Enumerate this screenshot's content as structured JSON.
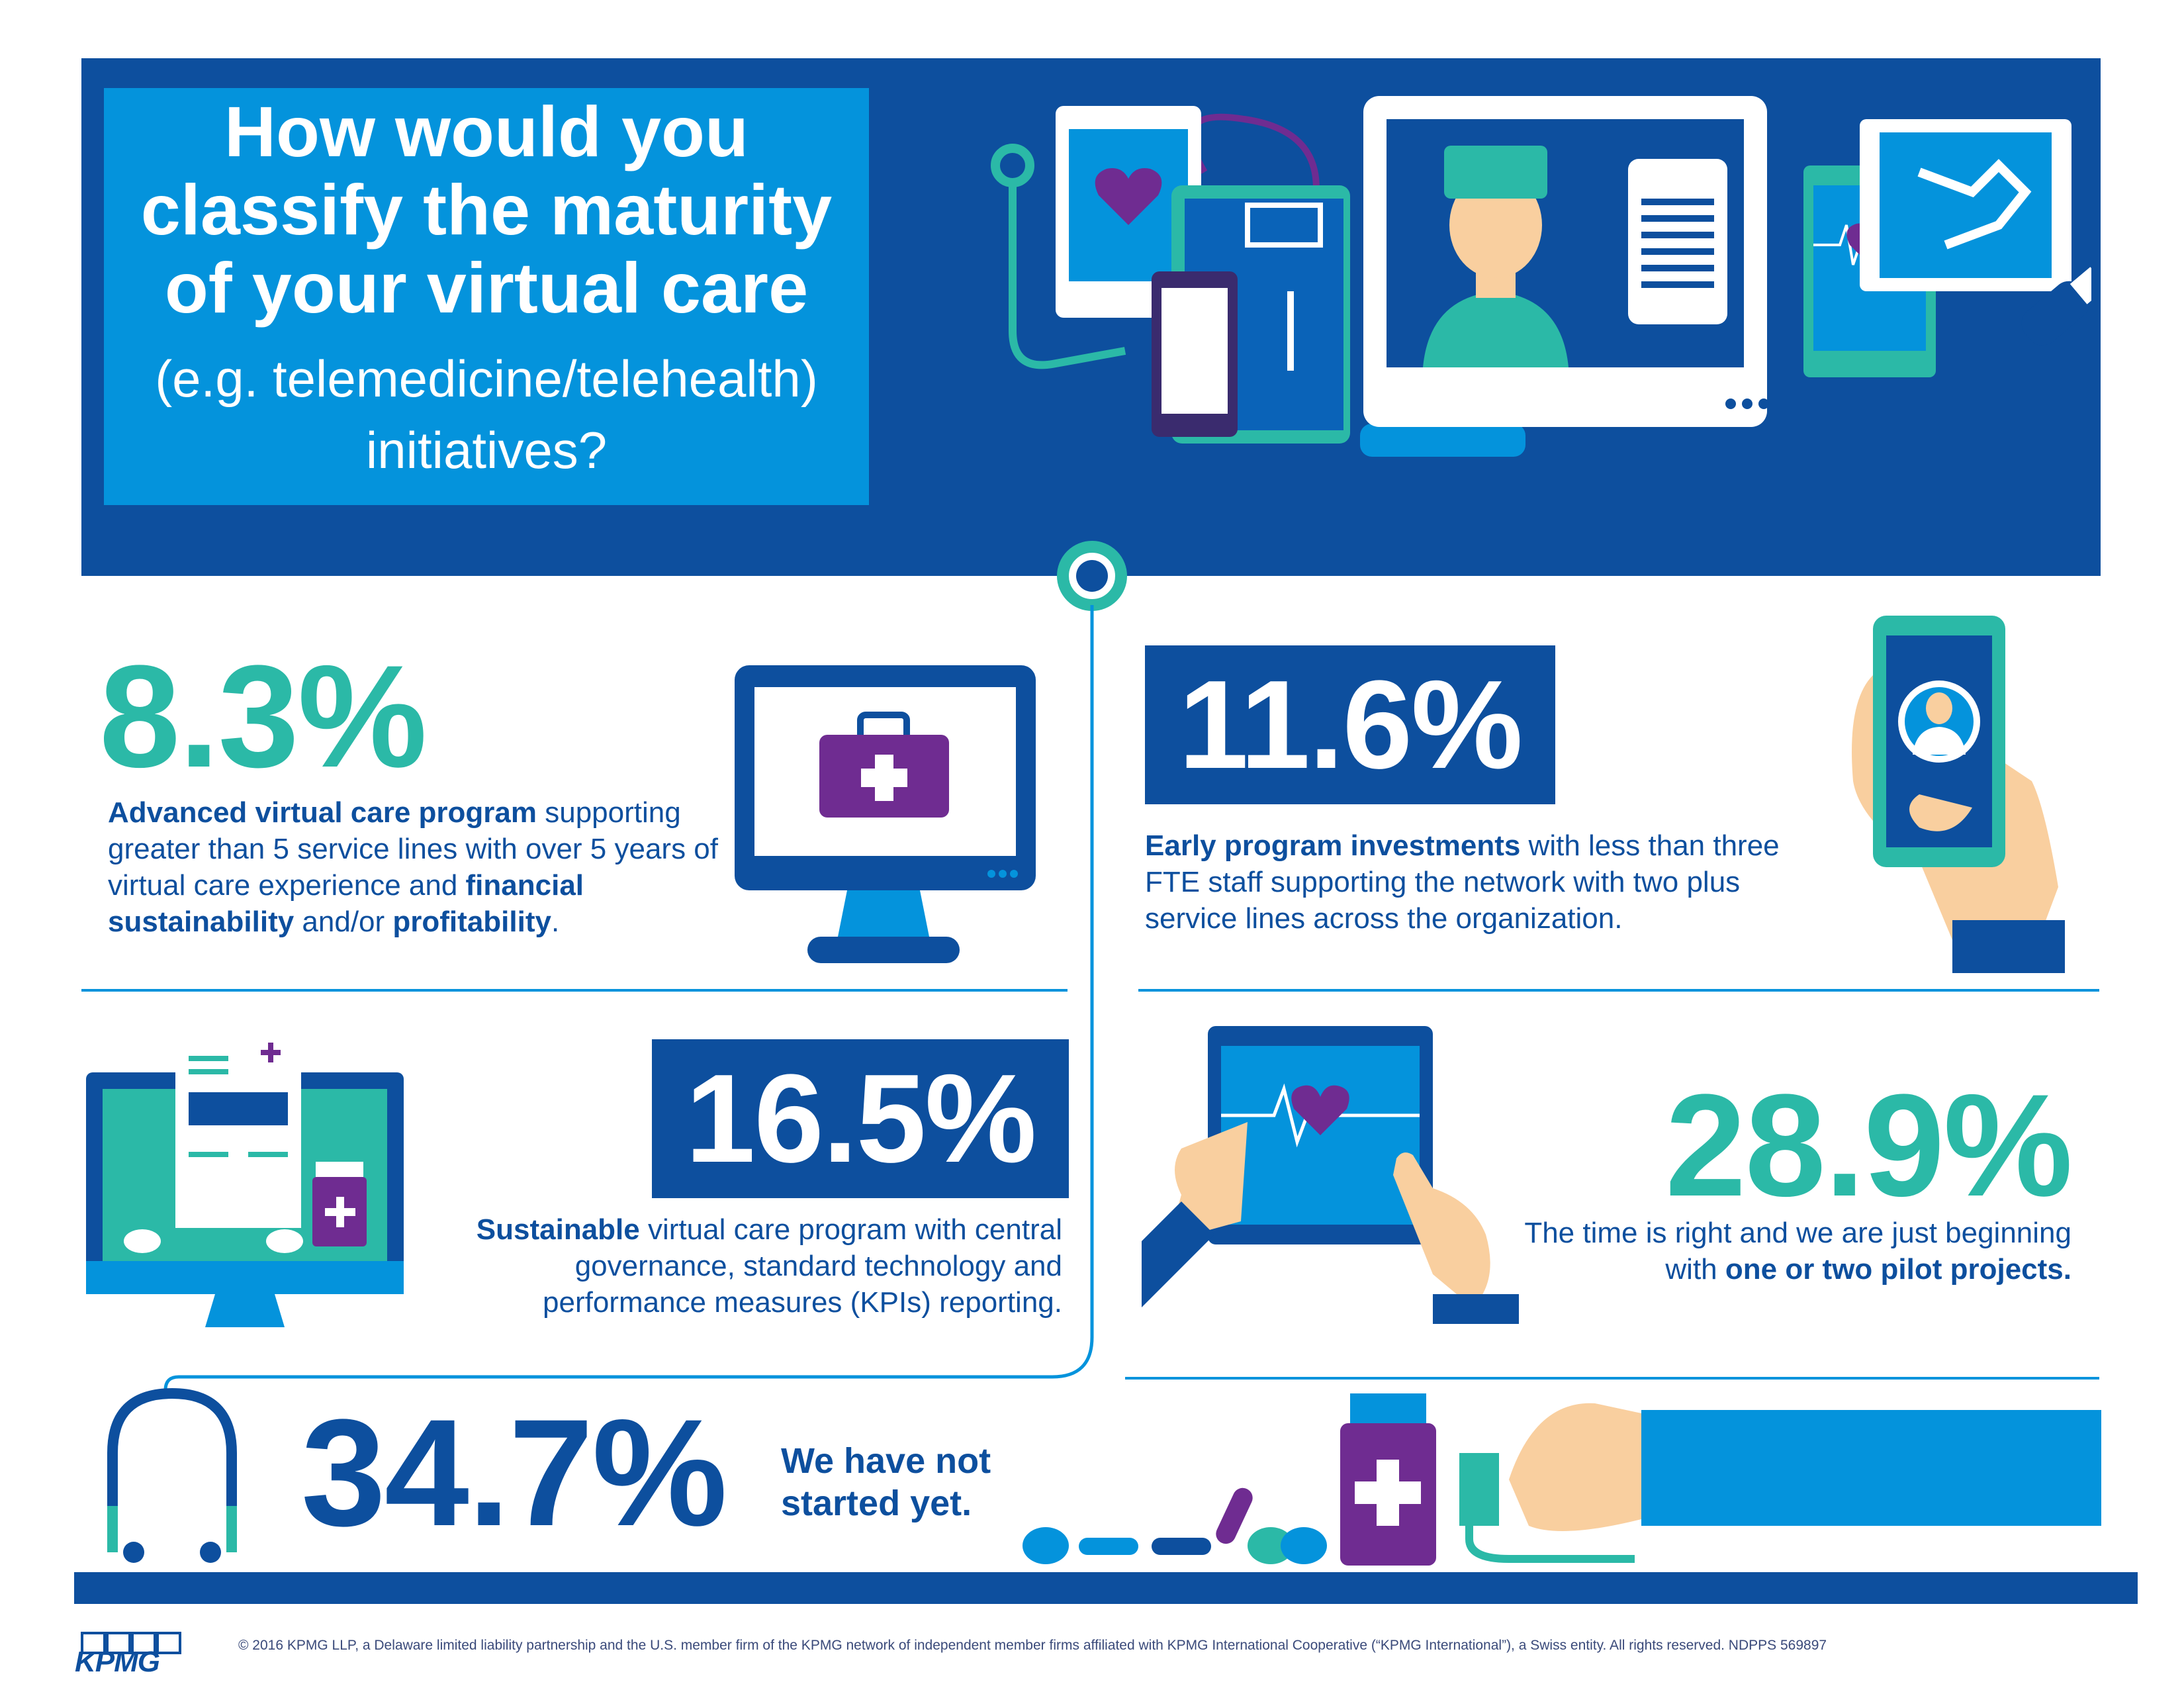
{
  "title": {
    "main": [
      "How would you",
      "classify the maturity",
      "of your virtual care"
    ],
    "sub": [
      "(e.g. telemedicine/telehealth)",
      "initiatives?"
    ]
  },
  "stats": [
    {
      "value": "8.3%",
      "desc": [
        "Advanced virtual care program",
        " supporting greater than 5 service lines with over 5 years of virtual care experience and ",
        "financial sustainability",
        " and/or ",
        "profitability",
        "."
      ]
    },
    {
      "value": "11.6%",
      "desc": [
        "Early program investments",
        " with less than three FTE staff supporting the network with two plus service lines across the organization."
      ]
    },
    {
      "value": "16.5%",
      "desc": [
        "Sustainable",
        " virtual care program with central governance, standard technology and performance measures (KPIs) reporting."
      ]
    },
    {
      "value": "28.9%",
      "desc": [
        "The time is right and we are just beginning with ",
        "one or two pilot projects."
      ]
    },
    {
      "value": "34.7%",
      "desc": [
        "We have not",
        "started yet."
      ]
    }
  ],
  "footer": {
    "logo": "KPMG",
    "copyright": "© 2016 KPMG LLP, a Delaware limited liability partnership and the U.S. member firm of the KPMG network of independent member firms affiliated with KPMG International Cooperative (“KPMG International”), a Swiss entity. All rights reserved. NDPPS 569897"
  },
  "colors": {
    "navy": "#0d4f9e",
    "blue": "#0493dc",
    "teal": "#2bb9a7",
    "purple": "#6f2c91",
    "skin": "#f9cf9f"
  },
  "icons": [
    "stethoscope-icon",
    "tablet-heart-icon",
    "doctor-monitor-icon",
    "xray-icon",
    "usb-icon",
    "medical-kit-monitor-icon",
    "smartphone-doctor-icon",
    "prescription-monitor-icon",
    "tablet-ecg-icon",
    "headphone-stethoscope-icon",
    "pills-icon",
    "medicine-bottle-icon",
    "hand-stethoscope-icon"
  ]
}
